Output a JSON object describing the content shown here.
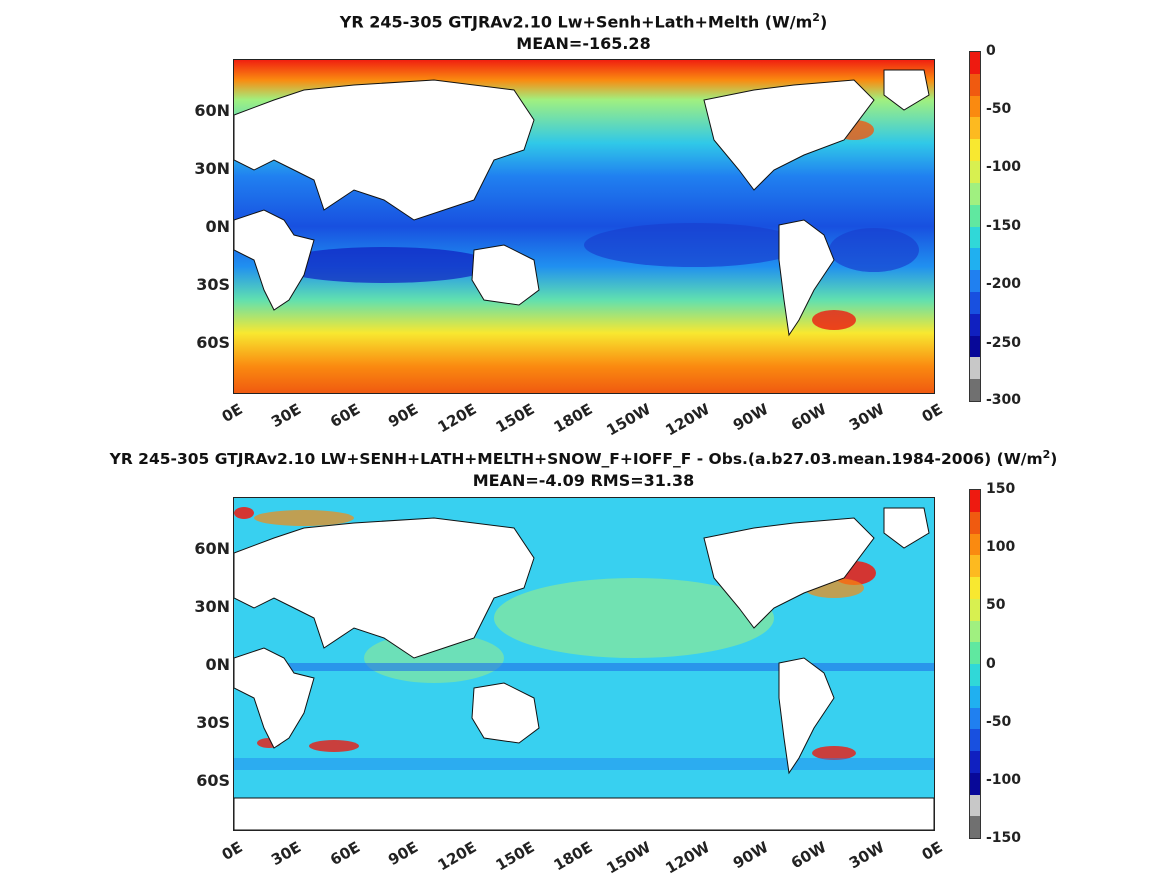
{
  "panels": [
    {
      "title_main": "YR 245-305 GTJRAv2.10 Lw+Senh+Lath+Melth (W/m",
      "title_sup": "2",
      "title_end": ")",
      "subtitle": "MEAN=-165.28",
      "y_ticks": [
        "60N",
        "30N",
        "0N",
        "30S",
        "60S"
      ],
      "x_ticks": [
        "0E",
        "30E",
        "60E",
        "90E",
        "120E",
        "150E",
        "180E",
        "150W",
        "120W",
        "90W",
        "60W",
        "30W",
        "0E"
      ],
      "colorbar_ticks": [
        "0",
        "-50",
        "-100",
        "-150",
        "-200",
        "-250",
        "-300"
      ],
      "colorbar_colors": [
        "#ee1a10",
        "#f05a10",
        "#fa8a10",
        "#fdba20",
        "#f8e830",
        "#d8f050",
        "#a0f080",
        "#60e8a0",
        "#30d8d8",
        "#20b0f0",
        "#2080f0",
        "#1850e0",
        "#1020c0",
        "#080898",
        "#c8c8c8",
        "#707070"
      ]
    },
    {
      "title_main": "YR 245-305 GTJRAv2.10 LW+SENH+LATH+MELTH+SNOW_F+IOFF_F - Obs.(a.b27.03.mean.1984-2006) (W/m",
      "title_sup": "2",
      "title_end": ")",
      "subtitle": "MEAN=-4.09 RMS=31.38",
      "y_ticks": [
        "60N",
        "30N",
        "0N",
        "30S",
        "60S"
      ],
      "x_ticks": [
        "0E",
        "30E",
        "60E",
        "90E",
        "120E",
        "150E",
        "180E",
        "150W",
        "120W",
        "90W",
        "60W",
        "30W",
        "0E"
      ],
      "colorbar_ticks": [
        "150",
        "100",
        "50",
        "0",
        "-50",
        "-100",
        "-150"
      ],
      "colorbar_colors": [
        "#ee1a10",
        "#f05a10",
        "#fa8a10",
        "#fdba20",
        "#f8e830",
        "#d8f050",
        "#a0f080",
        "#60e8a0",
        "#30d8d8",
        "#20b0f0",
        "#2080f0",
        "#1850e0",
        "#1020c0",
        "#080898",
        "#c8c8c8",
        "#707070"
      ]
    }
  ]
}
